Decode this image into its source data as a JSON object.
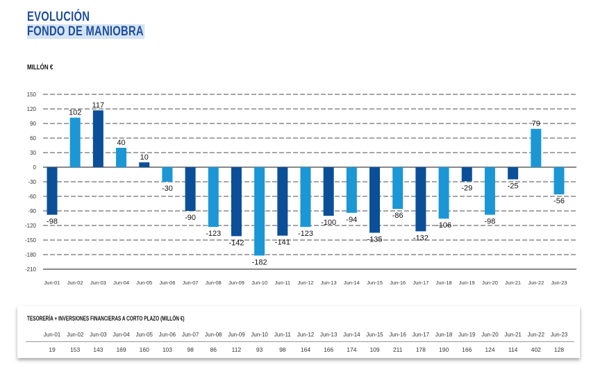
{
  "title": {
    "line1": "EVOLUCIÓN",
    "line2": "FONDO DE MANIOBRA"
  },
  "unit_label": "MILLÓN €",
  "colors": {
    "dark": "#0b4f98",
    "light": "#1b97d5",
    "title": "#1f4f9d"
  },
  "chart_data": {
    "type": "bar",
    "ylabel": "MILLÓN €",
    "ylim": [
      -210,
      150
    ],
    "yticks": [
      "150",
      "120",
      "90",
      "60",
      "30",
      "0",
      "-30",
      "-60",
      "-90",
      "-120",
      "-150",
      "-180",
      "-210"
    ],
    "grid": true,
    "categories": [
      "Jun-01",
      "Jun-02",
      "Jun-03",
      "Jun-04",
      "Jun-05",
      "Jun-06",
      "Jun-07",
      "Jun-08",
      "Jun-09",
      "Jun-10",
      "Jun-11",
      "Jun-12",
      "Jun-13",
      "Jun-14",
      "Jun-15",
      "Jun-16",
      "Jun-17",
      "Jun-18",
      "Jun-19",
      "Jun-20",
      "Jun-21",
      "Jun-22",
      "Jun-23"
    ],
    "values": [
      -98,
      102,
      117,
      40,
      10,
      -30,
      -90,
      -123,
      -142,
      -182,
      -141,
      -123,
      -100,
      -94,
      -135,
      -86,
      -132,
      -106,
      -29,
      -98,
      -25,
      79,
      -56
    ],
    "bar_shades": [
      "dark",
      "light",
      "dark",
      "light",
      "dark",
      "light",
      "dark",
      "light",
      "dark",
      "light",
      "dark",
      "light",
      "dark",
      "light",
      "dark",
      "light",
      "dark",
      "light",
      "dark",
      "light",
      "dark",
      "light",
      "light"
    ]
  },
  "table": {
    "title": "TESORERÍA + INVERSIONES FINANCIERAS A CORTO PLAZO (MILLÓN €)",
    "headers": [
      "Jun-01",
      "Jun-02",
      "Jun-03",
      "Jun-04",
      "Jun-05",
      "Jun-06",
      "Jun-07",
      "Jun-08",
      "Jun-09",
      "Jun-10",
      "Jun-11",
      "Jun-12",
      "Jun-13",
      "Jun-14",
      "Jun-15",
      "Jun-16",
      "Jun-17",
      "Jun-18",
      "Jun-19",
      "Jun-20",
      "Jun-21",
      "Jun-22",
      "Jun-23"
    ],
    "values": [
      "19",
      "153",
      "143",
      "169",
      "160",
      "103",
      "98",
      "86",
      "112",
      "93",
      "98",
      "164",
      "166",
      "174",
      "109",
      "211",
      "178",
      "190",
      "166",
      "124",
      "114",
      "402",
      "128"
    ]
  }
}
